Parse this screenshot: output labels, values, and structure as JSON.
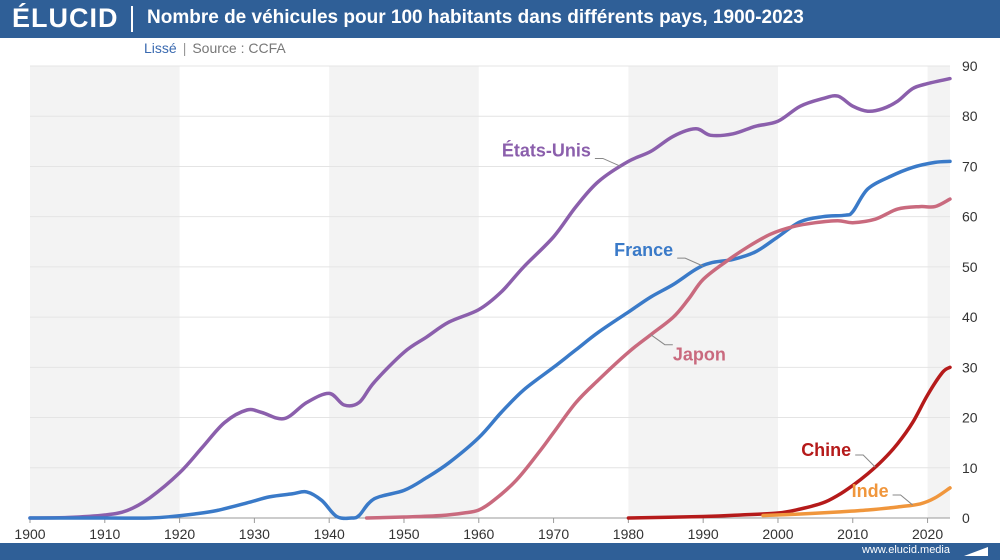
{
  "header": {
    "logo": "ÉLUCID",
    "title": "Nombre de véhicules pour 100 habitants dans différents pays, 1900-2023"
  },
  "subheader": {
    "smoothing": "Lissé",
    "separator": "|",
    "source": "Source : CCFA"
  },
  "footer": {
    "site": "www.elucid.media"
  },
  "colors": {
    "brand": "#2f5f97",
    "band": "#f3f3f3",
    "grid": "#e4e4e4"
  },
  "chart_data": {
    "type": "line",
    "title": "Nombre de véhicules pour 100 habitants dans différents pays, 1900-2023",
    "xlabel": "",
    "ylabel": "",
    "xlim": [
      1900,
      2023
    ],
    "ylim": [
      0,
      90
    ],
    "x_ticks": [
      1900,
      1910,
      1920,
      1930,
      1940,
      1950,
      1960,
      1970,
      1980,
      1990,
      2000,
      2010,
      2020
    ],
    "y_ticks": [
      0,
      10,
      20,
      30,
      40,
      50,
      60,
      70,
      80,
      90
    ],
    "y_axis_position": "right",
    "background_bands": [
      [
        1900,
        1920
      ],
      [
        1940,
        1960
      ],
      [
        1980,
        2000
      ],
      [
        2020,
        2023
      ]
    ],
    "series": [
      {
        "name": "États-Unis",
        "color": "#8b5fac",
        "x": [
          1900,
          1905,
          1910,
          1913,
          1916,
          1920,
          1923,
          1926,
          1929,
          1931,
          1934,
          1937,
          1940,
          1942,
          1944,
          1946,
          1950,
          1953,
          1956,
          1960,
          1963,
          1966,
          1970,
          1973,
          1976,
          1980,
          1983,
          1986,
          1989,
          1991,
          1994,
          1997,
          2000,
          2003,
          2006,
          2008,
          2010,
          2012,
          2014,
          2016,
          2018,
          2020,
          2023
        ],
        "y": [
          0,
          0.1,
          0.6,
          1.5,
          4,
          9,
          14,
          19,
          21.5,
          21,
          19.8,
          23,
          24.8,
          22.5,
          23,
          27,
          33,
          36,
          39,
          41.5,
          45,
          50,
          56,
          62,
          67,
          71,
          73,
          76,
          77.5,
          76.2,
          76.5,
          78,
          79,
          82,
          83.5,
          84,
          82,
          81,
          81.5,
          83,
          85.5,
          86.5,
          87.5
        ]
      },
      {
        "name": "France",
        "color": "#3a7ac8",
        "x": [
          1900,
          1910,
          1916,
          1919,
          1922,
          1925,
          1929,
          1932,
          1935,
          1937,
          1939,
          1941,
          1943,
          1944,
          1946,
          1950,
          1953,
          1956,
          1960,
          1963,
          1966,
          1970,
          1973,
          1976,
          1980,
          1983,
          1986,
          1989,
          1991,
          1994,
          1997,
          2000,
          2003,
          2006,
          2009,
          2010,
          2012,
          2015,
          2018,
          2021,
          2023
        ],
        "y": [
          0,
          0,
          0,
          0.3,
          0.8,
          1.5,
          3,
          4.2,
          4.8,
          5.2,
          3.5,
          0.3,
          0,
          0.5,
          3.8,
          5.5,
          8,
          11,
          16,
          21,
          25.5,
          30,
          33.5,
          37,
          41,
          44,
          46.5,
          49.5,
          50.8,
          51.5,
          53,
          56,
          59,
          60,
          60.3,
          61,
          65.5,
          68,
          69.8,
          70.8,
          71
        ]
      },
      {
        "name": "Japon",
        "color": "#c96a7e",
        "x": [
          1945,
          1950,
          1955,
          1958,
          1960,
          1962,
          1965,
          1968,
          1970,
          1973,
          1976,
          1980,
          1983,
          1986,
          1988,
          1990,
          1993,
          1996,
          1999,
          2002,
          2005,
          2008,
          2010,
          2013,
          2016,
          2019,
          2021,
          2023
        ],
        "y": [
          0,
          0.2,
          0.5,
          1,
          1.6,
          3.5,
          7.5,
          13,
          17,
          23,
          27.5,
          33,
          36.5,
          40,
          43.5,
          47.5,
          51,
          54,
          56.5,
          58,
          58.8,
          59.2,
          58.8,
          59.5,
          61.5,
          62,
          62,
          63.5
        ]
      },
      {
        "name": "Chine",
        "color": "#b51a1a",
        "x": [
          1980,
          1990,
          1995,
          2000,
          2003,
          2006,
          2008,
          2010,
          2012,
          2014,
          2016,
          2018,
          2020,
          2022,
          2023
        ],
        "y": [
          0,
          0.3,
          0.6,
          1,
          1.8,
          3,
          4.5,
          6.5,
          8.8,
          11.5,
          14.8,
          19,
          24.5,
          29,
          30
        ]
      },
      {
        "name": "Inde",
        "color": "#f0963c",
        "x": [
          1998,
          2003,
          2008,
          2012,
          2016,
          2019,
          2021,
          2023
        ],
        "y": [
          0.5,
          0.8,
          1.2,
          1.6,
          2.2,
          2.8,
          4,
          6
        ]
      }
    ],
    "annotations": [
      {
        "series": "États-Unis",
        "text": "États-Unis",
        "year": 1979
      },
      {
        "series": "France",
        "text": "France",
        "year": 1990
      },
      {
        "series": "Japon",
        "text": "Japon",
        "year": 1983
      },
      {
        "series": "Chine",
        "text": "Chine",
        "year": 2013
      },
      {
        "series": "Inde",
        "text": "Inde",
        "year": 2018
      }
    ]
  }
}
